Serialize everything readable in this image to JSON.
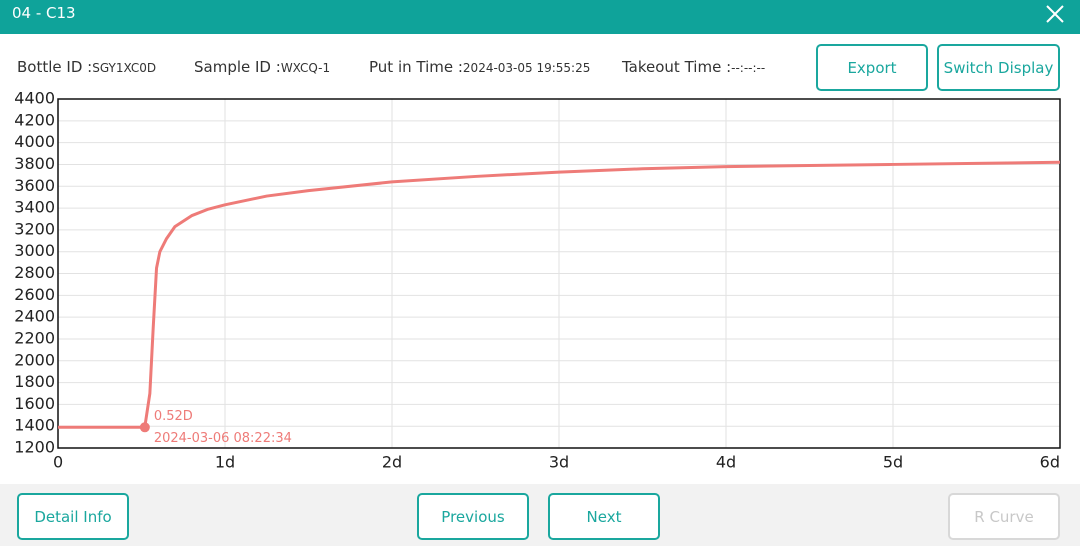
{
  "header": {
    "title": "04  -  C13"
  },
  "info": [
    {
      "label": "Bottle ID :",
      "value": "SGY1XC0D"
    },
    {
      "label": "Sample ID :",
      "value": "WXCQ-1"
    },
    {
      "label": "Put in Time :",
      "value": "2024-03-05 19:55:25"
    },
    {
      "label": "Takeout Time :",
      "value": "--:--:--"
    }
  ],
  "top_buttons": [
    "Export",
    "Switch Display"
  ],
  "bottom_buttons": [
    "Detail Info",
    "Previous",
    "Next",
    "R Curve"
  ],
  "chart_data": {
    "type": "line",
    "color": "#ee7b78",
    "x": [
      0,
      0.1,
      0.2,
      0.3,
      0.4,
      0.5,
      0.52,
      0.55,
      0.57,
      0.59,
      0.61,
      0.65,
      0.7,
      0.8,
      0.9,
      1.0,
      1.25,
      1.5,
      2.0,
      2.5,
      3.0,
      3.5,
      4.0,
      4.5,
      5.0,
      5.5,
      6.0
    ],
    "values": [
      1390,
      1390,
      1390,
      1390,
      1390,
      1390,
      1395,
      1700,
      2300,
      2850,
      3000,
      3120,
      3230,
      3330,
      3390,
      3430,
      3510,
      3560,
      3640,
      3690,
      3730,
      3760,
      3780,
      3790,
      3800,
      3810,
      3820
    ],
    "xlim": [
      0,
      6
    ],
    "ylim": [
      1200,
      4400
    ],
    "xticks": [
      0,
      {
        "value": 1,
        "label": "1d"
      },
      {
        "value": 2,
        "label": "2d"
      },
      {
        "value": 3,
        "label": "3d"
      },
      {
        "value": 4,
        "label": "4d"
      },
      {
        "value": 5,
        "label": "5d"
      },
      {
        "value": 6,
        "label": "6d"
      }
    ],
    "yticks": [
      1200,
      1400,
      1600,
      1800,
      2000,
      2200,
      2400,
      2600,
      2800,
      3000,
      3200,
      3400,
      3600,
      3800,
      4000,
      4200,
      4400
    ],
    "grid": true,
    "marker": {
      "x": 0.52,
      "y": 1390,
      "label": "0.52D",
      "time": "2024-03-06 08:22:34"
    }
  }
}
